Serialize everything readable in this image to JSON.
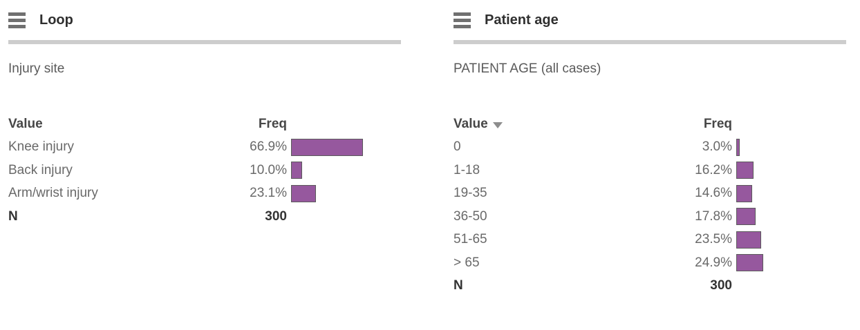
{
  "colors": {
    "bar_fill": "#96589e",
    "bar_border": "#5b5b5b",
    "divider": "#cdcdcd"
  },
  "panels": [
    {
      "title": "Loop",
      "subtitle": "Injury site",
      "columns": {
        "value": "Value",
        "freq": "Freq"
      },
      "has_sort_icon": false,
      "rows": [
        {
          "label": "Knee injury",
          "freq": "66.9%",
          "pct": 66.9
        },
        {
          "label": "Back injury",
          "freq": "10.0%",
          "pct": 10.0
        },
        {
          "label": "Arm/wrist injury",
          "freq": "23.1%",
          "pct": 23.1
        }
      ],
      "footer": {
        "label": "N",
        "value": "300"
      }
    },
    {
      "title": "Patient age",
      "subtitle": "PATIENT AGE (all cases)",
      "columns": {
        "value": "Value",
        "freq": "Freq"
      },
      "has_sort_icon": true,
      "rows": [
        {
          "label": "0",
          "freq": "3.0%",
          "pct": 3.0
        },
        {
          "label": "1-18",
          "freq": "16.2%",
          "pct": 16.2
        },
        {
          "label": "19-35",
          "freq": "14.6%",
          "pct": 14.6
        },
        {
          "label": "36-50",
          "freq": "17.8%",
          "pct": 17.8
        },
        {
          "label": "51-65",
          "freq": "23.5%",
          "pct": 23.5
        },
        {
          "label": "> 65",
          "freq": "24.9%",
          "pct": 24.9
        }
      ],
      "footer": {
        "label": "N",
        "value": "300"
      }
    }
  ],
  "chart_data": [
    {
      "type": "bar",
      "orientation": "horizontal",
      "widget_title": "Loop",
      "title": "Injury site",
      "column_headers": [
        "Value",
        "Freq"
      ],
      "categories": [
        "Knee injury",
        "Back injury",
        "Arm/wrist injury"
      ],
      "values": [
        66.9,
        10.0,
        23.1
      ],
      "value_unit": "%",
      "n": 300,
      "xlim": [
        0,
        100
      ],
      "bar_color": "#96589e",
      "grid": false,
      "legend": false
    },
    {
      "type": "bar",
      "orientation": "horizontal",
      "widget_title": "Patient age",
      "title": "PATIENT AGE (all cases)",
      "column_headers": [
        "Value",
        "Freq"
      ],
      "sorted_by": "Value descending-indicator shown",
      "categories": [
        "0",
        "1-18",
        "19-35",
        "36-50",
        "51-65",
        "> 65"
      ],
      "values": [
        3.0,
        16.2,
        14.6,
        17.8,
        23.5,
        24.9
      ],
      "value_unit": "%",
      "n": 300,
      "xlim": [
        0,
        100
      ],
      "bar_color": "#96589e",
      "grid": false,
      "legend": false
    }
  ]
}
